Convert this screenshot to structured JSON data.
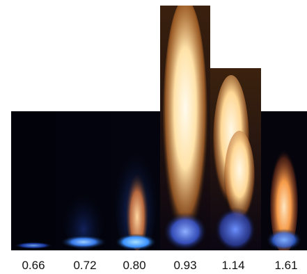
{
  "flames": [
    {
      "label": "0.66",
      "flame_color": "#3b7bff"
    },
    {
      "label": "0.72",
      "flame_color": "#3f8cff"
    },
    {
      "label": "0.80",
      "flame_color": "#ff9a40"
    },
    {
      "label": "0.93",
      "flame_color": "#fff2c8"
    },
    {
      "label": "1.14",
      "flame_color": "#ffe8b8"
    },
    {
      "label": "1.61",
      "flame_color": "#ffb060"
    }
  ]
}
